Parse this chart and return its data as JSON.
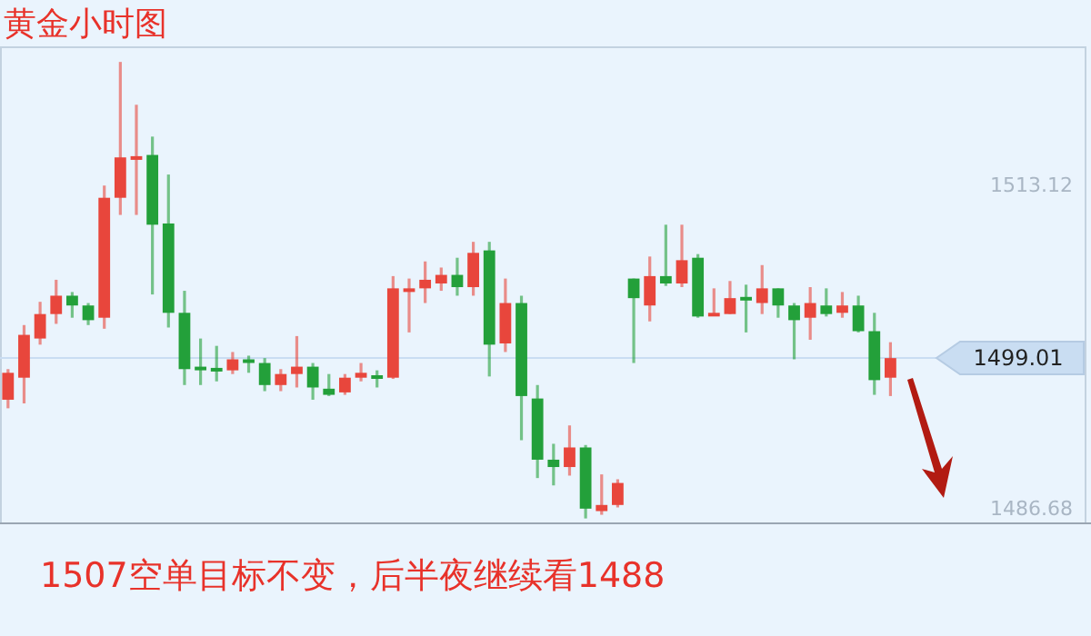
{
  "chart_data": {
    "type": "candlestick",
    "title": "黄金小时图",
    "categories": [
      null,
      null,
      null,
      null,
      null,
      null,
      null,
      null,
      null,
      null,
      null,
      null,
      null,
      null,
      null,
      null,
      null,
      null,
      null,
      null,
      null,
      null,
      null,
      null,
      null,
      null,
      null,
      null,
      null,
      null,
      null,
      null,
      null,
      null,
      null,
      null,
      null,
      null,
      null,
      null,
      null,
      null,
      null,
      null,
      null,
      null,
      null,
      null,
      null,
      null,
      null,
      null,
      null,
      null,
      null,
      null
    ],
    "ohlc": [
      [
        1495.6,
        1498.1,
        1494.9,
        1497.8
      ],
      [
        1497.4,
        1501.7,
        1495.3,
        1500.9
      ],
      [
        1500.6,
        1503.6,
        1500.1,
        1502.6
      ],
      [
        1502.6,
        1505.4,
        1501.8,
        1504.1
      ],
      [
        1504.1,
        1504.4,
        1502.3,
        1503.3
      ],
      [
        1503.3,
        1503.5,
        1501.7,
        1502.1
      ],
      [
        1502.3,
        1513.1,
        1501.4,
        1512.1
      ],
      [
        1512.1,
        1523.2,
        1510.7,
        1515.4
      ],
      [
        1515.2,
        1519.7,
        1510.7,
        1515.5
      ],
      [
        1515.6,
        1517.1,
        1504.2,
        1509.9
      ],
      [
        1510.0,
        1514.0,
        1501.5,
        1502.7
      ],
      [
        1502.7,
        1504.5,
        1496.8,
        1498.1
      ],
      [
        1498.3,
        1500.6,
        1496.8,
        1498.1
      ],
      [
        1498.2,
        1500.0,
        1497.1,
        1498.0
      ],
      [
        1498.0,
        1499.5,
        1497.7,
        1498.9
      ],
      [
        1498.9,
        1499.2,
        1497.8,
        1498.7
      ],
      [
        1498.6,
        1499.0,
        1496.3,
        1496.8
      ],
      [
        1496.8,
        1498.1,
        1496.3,
        1497.7
      ],
      [
        1497.7,
        1500.8,
        1496.6,
        1498.3
      ],
      [
        1498.3,
        1498.6,
        1495.6,
        1496.6
      ],
      [
        1496.5,
        1497.7,
        1495.9,
        1496.0
      ],
      [
        1496.2,
        1497.7,
        1496.0,
        1497.4
      ],
      [
        1497.4,
        1498.6,
        1497.1,
        1497.8
      ],
      [
        1497.6,
        1498.0,
        1496.6,
        1497.5
      ],
      [
        1497.4,
        1505.7,
        1497.3,
        1504.7
      ],
      [
        1504.6,
        1505.5,
        1501.1,
        1504.7
      ],
      [
        1504.7,
        1506.9,
        1503.5,
        1505.4
      ],
      [
        1505.1,
        1506.4,
        1504.5,
        1505.8
      ],
      [
        1505.8,
        1507.2,
        1504.1,
        1504.8
      ],
      [
        1504.8,
        1508.5,
        1504.1,
        1507.6
      ],
      [
        1507.8,
        1508.5,
        1497.5,
        1500.1
      ],
      [
        1500.2,
        1505.5,
        1499.5,
        1503.5
      ],
      [
        1503.5,
        1504.1,
        1492.3,
        1495.9
      ],
      [
        1495.7,
        1496.8,
        1489.2,
        1490.7
      ],
      [
        1490.7,
        1492.0,
        1488.6,
        1490.1
      ],
      [
        1490.1,
        1493.5,
        1489.4,
        1491.7
      ],
      [
        1491.7,
        1491.9,
        1485.9,
        1486.7
      ],
      [
        1486.5,
        1489.5,
        1486.2,
        1487.0
      ],
      [
        1487.0,
        1489.1,
        1486.8,
        1488.8
      ],
      [
        1505.5,
        1505.5,
        1498.6,
        1503.9
      ],
      [
        1503.3,
        1507.3,
        1502.0,
        1505.7
      ],
      [
        1505.7,
        1509.9,
        1504.9,
        1505.1
      ],
      [
        1505.1,
        1509.9,
        1504.8,
        1507.0
      ],
      [
        1507.2,
        1507.5,
        1502.3,
        1502.4
      ],
      [
        1502.6,
        1504.7,
        1502.6,
        1502.7
      ],
      [
        1502.6,
        1505.3,
        1502.6,
        1503.9
      ],
      [
        1504.0,
        1505.0,
        1501.1,
        1503.8
      ],
      [
        1503.5,
        1506.6,
        1502.6,
        1504.7
      ],
      [
        1504.7,
        1504.7,
        1502.3,
        1503.3
      ],
      [
        1503.3,
        1503.5,
        1498.9,
        1502.1
      ],
      [
        1502.3,
        1504.8,
        1500.5,
        1503.5
      ],
      [
        1503.3,
        1504.7,
        1502.4,
        1502.6
      ],
      [
        1502.7,
        1504.4,
        1502.3,
        1503.3
      ],
      [
        1503.3,
        1504.1,
        1501.1,
        1501.2
      ],
      [
        1501.2,
        1502.7,
        1496.0,
        1497.2
      ],
      [
        1497.4,
        1500.3,
        1495.9,
        1499.0
      ]
    ],
    "colors": [
      "#e8463c",
      "#e8463c",
      "#e8463c",
      "#e8463c",
      "#23a03a",
      "#23a03a",
      "#e8463c",
      "#e8463c",
      "#e8463c",
      "#23a03a",
      "#23a03a",
      "#23a03a",
      "#23a03a",
      "#23a03a",
      "#e8463c",
      "#23a03a",
      "#23a03a",
      "#e8463c",
      "#e8463c",
      "#23a03a",
      "#23a03a",
      "#e8463c",
      "#e8463c",
      "#23a03a",
      "#e8463c",
      "#e8463c",
      "#e8463c",
      "#e8463c",
      "#23a03a",
      "#e8463c",
      "#23a03a",
      "#e8463c",
      "#23a03a",
      "#23a03a",
      "#23a03a",
      "#e8463c",
      "#23a03a",
      "#e8463c",
      "#e8463c",
      "#23a03a",
      "#e8463c",
      "#23a03a",
      "#e8463c",
      "#23a03a",
      "#e8463c",
      "#e8463c",
      "#23a03a",
      "#e8463c",
      "#23a03a",
      "#23a03a",
      "#e8463c",
      "#23a03a",
      "#e8463c",
      "#23a03a",
      "#23a03a",
      "#e8463c"
    ],
    "ylim": [
      1485.5,
      1524.4
    ],
    "yticks": [
      1513.12,
      1486.68
    ],
    "ref_lines": [
      {
        "axis": "y",
        "value": 1499.01,
        "label": "1499.01",
        "color": "#c9ddf2"
      }
    ],
    "annotations": [
      "1507空单目标不变，后半夜继续看1488"
    ]
  }
}
